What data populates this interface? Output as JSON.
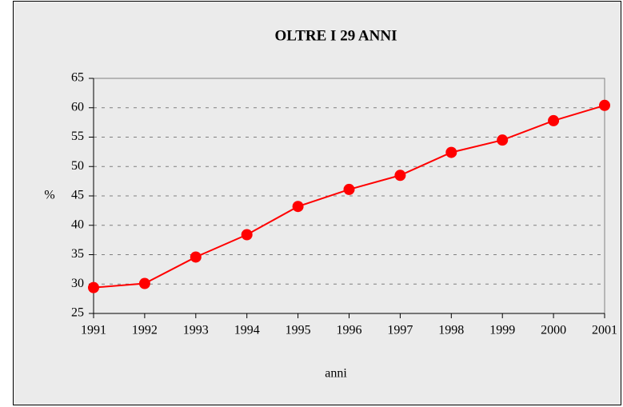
{
  "chart_data": {
    "type": "line",
    "title": "OLTRE I 29 ANNI",
    "x_label": "anni",
    "y_label": "%",
    "categories": [
      "1991",
      "1992",
      "1993",
      "1994",
      "1995",
      "1996",
      "1997",
      "1998",
      "1999",
      "2000",
      "2001"
    ],
    "series": [
      {
        "color": "#ff0000",
        "values": [
          29.4,
          30.1,
          34.6,
          38.4,
          43.2,
          46.1,
          48.5,
          52.4,
          54.5,
          57.8,
          60.4
        ]
      }
    ],
    "ylim": [
      25,
      65
    ],
    "yticks": [
      25,
      30,
      35,
      40,
      45,
      50,
      55,
      60,
      65
    ],
    "grid": true
  }
}
